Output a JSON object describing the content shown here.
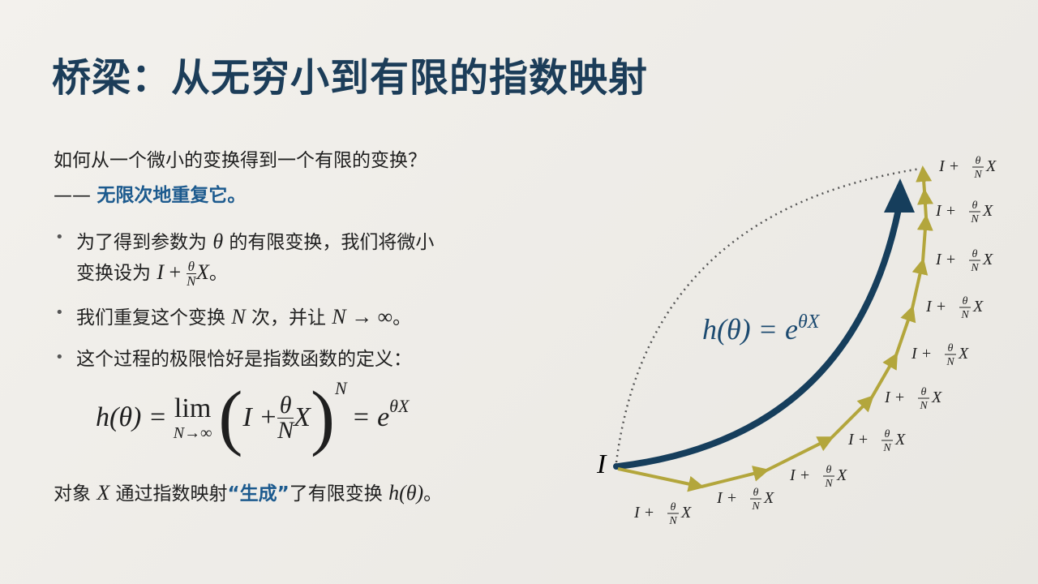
{
  "title": "桥梁：从无穷小到有限的指数映射",
  "question": "如何从一个微小的变换得到一个有限的变换？",
  "answer": {
    "dash": "——",
    "text": "无限次地重复它。"
  },
  "bullets": [
    [
      "为了得到参数为 ",
      "θ",
      " 的有限变换，我们将微小",
      "变换设为 ",
      "I",
      " + ",
      "θ",
      "N",
      "X",
      "。"
    ],
    [
      "我们重复这个变换 ",
      "N",
      " 次，并让 ",
      "N",
      " → ∞",
      "。"
    ],
    [
      "这个过程的极限恰好是指数函数的定义："
    ]
  ],
  "formula": {
    "lhs": "h(θ) = ",
    "lim": "lim",
    "sub": "N→∞",
    "open": "(",
    "I": "I + ",
    "num": "θ",
    "den": "N",
    "X": "X",
    "close": ")",
    "power": "N",
    "eq": " = e",
    "exp": "θX"
  },
  "conclusion": [
    "对象 ",
    "X",
    " 通过指数映射",
    "“生成”",
    "了有限变换 ",
    "h(θ)",
    "。"
  ],
  "diagram": {
    "origin": "I",
    "arrow_label": {
      "base": "h(θ) = e",
      "exp": "θX"
    },
    "steps": [
      {
        "lhs": "I +",
        "num": "θ",
        "den": "N",
        "x": "X"
      },
      {
        "lhs": "I +",
        "num": "θ",
        "den": "N",
        "x": "X"
      },
      {
        "lhs": "I +",
        "num": "θ",
        "den": "N",
        "x": "X"
      },
      {
        "lhs": "I +",
        "num": "θ",
        "den": "N",
        "x": "X"
      },
      {
        "lhs": "I +",
        "num": "θ",
        "den": "N",
        "x": "X"
      },
      {
        "lhs": "I +",
        "num": "θ",
        "den": "N",
        "x": "X"
      },
      {
        "lhs": "I +",
        "num": "θ",
        "den": "N",
        "x": "X"
      },
      {
        "lhs": "I +",
        "num": "θ",
        "den": "N",
        "x": "X"
      },
      {
        "lhs": "I +",
        "num": "θ",
        "den": "N",
        "x": "X"
      },
      {
        "lhs": "I +",
        "num": "θ",
        "den": "N",
        "x": "X"
      }
    ]
  }
}
